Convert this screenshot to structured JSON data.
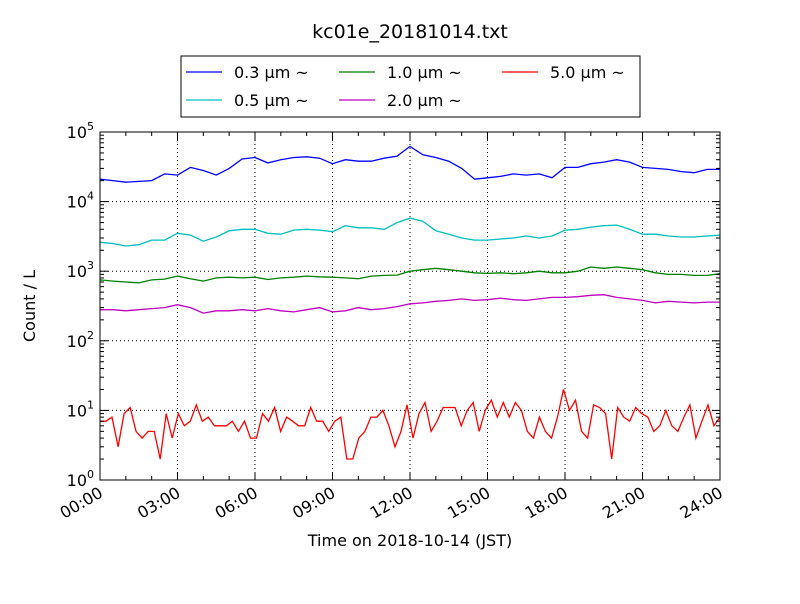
{
  "chart_data": {
    "type": "line",
    "title": "kc01e_20181014.txt",
    "xlabel": "Time on 2018-10-14 (JST)",
    "ylabel": "Count / L",
    "xlim": [
      0,
      24
    ],
    "ylim": [
      1,
      100000
    ],
    "yscale": "log",
    "grid": true,
    "legend_placement": "top-center",
    "x_ticks": [
      "00:00",
      "03:00",
      "06:00",
      "09:00",
      "12:00",
      "15:00",
      "18:00",
      "21:00",
      "24:00"
    ],
    "y_ticks": [
      {
        "base": "10",
        "exp": "0"
      },
      {
        "base": "10",
        "exp": "1"
      },
      {
        "base": "10",
        "exp": "2"
      },
      {
        "base": "10",
        "exp": "3"
      },
      {
        "base": "10",
        "exp": "4"
      },
      {
        "base": "10",
        "exp": "5"
      }
    ],
    "series": [
      {
        "name": "0.3 μm ~",
        "color": "#0000ff",
        "values": [
          21000,
          20000,
          19000,
          19500,
          20000,
          25000,
          24000,
          31000,
          28000,
          24000,
          30000,
          41000,
          43000,
          36000,
          40000,
          43000,
          44000,
          42000,
          35000,
          40000,
          38000,
          38000,
          42000,
          45000,
          62000,
          47000,
          43000,
          38000,
          30000,
          21000,
          22000,
          23000,
          25000,
          24000,
          25000,
          22000,
          31000,
          31000,
          35000,
          37000,
          40000,
          37000,
          31000,
          30000,
          29000,
          27000,
          26000,
          29000,
          29000
        ]
      },
      {
        "name": "0.5 μm ~",
        "color": "#00bfbf",
        "values": [
          2600,
          2500,
          2300,
          2400,
          2800,
          2800,
          3500,
          3300,
          2700,
          3100,
          3800,
          4000,
          4000,
          3500,
          3400,
          3900,
          4000,
          3900,
          3700,
          4500,
          4200,
          4200,
          4000,
          5000,
          5800,
          5200,
          3800,
          3400,
          3000,
          2800,
          2800,
          2900,
          3000,
          3200,
          3000,
          3200,
          3900,
          4000,
          4300,
          4500,
          4600,
          4000,
          3400,
          3400,
          3200,
          3100,
          3100,
          3200,
          3300
        ]
      },
      {
        "name": "1.0 μm ~",
        "color": "#008000",
        "values": [
          750,
          720,
          700,
          680,
          750,
          770,
          850,
          780,
          720,
          800,
          820,
          800,
          820,
          760,
          800,
          820,
          850,
          830,
          820,
          800,
          780,
          850,
          870,
          880,
          1000,
          1050,
          1100,
          1050,
          1000,
          950,
          930,
          950,
          920,
          950,
          1000,
          950,
          950,
          1000,
          1150,
          1100,
          1150,
          1100,
          1050,
          950,
          900,
          900,
          870,
          870,
          920
        ]
      },
      {
        "name": "2.0 μm ~",
        "color": "#bf00bf",
        "values": [
          280,
          280,
          270,
          280,
          290,
          300,
          330,
          300,
          250,
          270,
          270,
          280,
          270,
          290,
          270,
          260,
          280,
          300,
          260,
          270,
          300,
          280,
          290,
          310,
          340,
          350,
          370,
          380,
          400,
          380,
          390,
          410,
          390,
          380,
          400,
          420,
          420,
          430,
          450,
          460,
          420,
          400,
          380,
          350,
          370,
          360,
          350,
          360,
          360
        ]
      },
      {
        "name": "5.0 μm ~",
        "color": "#ff0000",
        "values": [
          7,
          7,
          8,
          3,
          9,
          11,
          5,
          4,
          5,
          5,
          2,
          9,
          4,
          9,
          6,
          7,
          12,
          7,
          8,
          6,
          6,
          6,
          7,
          5,
          7,
          4,
          4,
          9,
          7,
          11,
          5,
          8,
          7,
          6,
          6,
          11,
          7,
          7,
          5,
          7,
          8,
          2,
          2,
          4,
          5,
          8,
          8,
          10,
          6,
          3,
          5,
          12,
          4,
          9,
          13,
          5,
          7,
          11,
          11,
          11,
          6,
          10,
          13,
          5,
          10,
          14,
          8,
          13,
          8,
          13,
          10,
          5,
          4,
          8,
          5,
          4,
          8,
          20,
          10,
          14,
          5,
          4,
          12,
          11,
          9,
          2,
          11,
          8,
          7,
          11,
          9,
          8,
          5,
          6,
          10,
          6,
          5,
          8,
          12,
          4,
          7,
          12,
          6,
          8
        ]
      }
    ]
  }
}
